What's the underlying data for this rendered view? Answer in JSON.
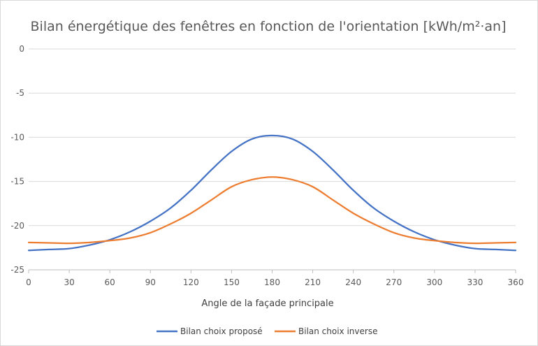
{
  "chart_data": {
    "type": "line",
    "title": "Bilan énergétique des fenêtres en fonction de l'orientation [kWh/m²·an]",
    "xlabel": "Angle de la façade principale",
    "ylabel": "",
    "xlim": [
      0,
      360
    ],
    "ylim": [
      -25,
      0
    ],
    "x_ticks": [
      0,
      30,
      60,
      90,
      120,
      150,
      180,
      210,
      240,
      270,
      300,
      330,
      360
    ],
    "y_ticks": [
      0,
      -5,
      -10,
      -15,
      -20,
      -25
    ],
    "grid": "horizontal",
    "legend_position": "bottom",
    "x": [
      0,
      15,
      30,
      45,
      60,
      75,
      90,
      105,
      120,
      135,
      150,
      165,
      180,
      195,
      210,
      225,
      240,
      255,
      270,
      285,
      300,
      315,
      330,
      345,
      360
    ],
    "series": [
      {
        "name": "Bilan choix proposé",
        "color": "#4472c4",
        "values": [
          -22.8,
          -22.7,
          -22.6,
          -22.2,
          -21.6,
          -20.7,
          -19.5,
          -18.0,
          -16.0,
          -13.7,
          -11.6,
          -10.2,
          -9.8,
          -10.2,
          -11.6,
          -13.7,
          -16.0,
          -18.0,
          -19.5,
          -20.7,
          -21.6,
          -22.2,
          -22.6,
          -22.7,
          -22.8
        ]
      },
      {
        "name": "Bilan choix inverse",
        "color": "#ed7d31",
        "values": [
          -21.9,
          -21.95,
          -22.0,
          -21.9,
          -21.7,
          -21.4,
          -20.8,
          -19.8,
          -18.6,
          -17.1,
          -15.6,
          -14.8,
          -14.5,
          -14.8,
          -15.6,
          -17.1,
          -18.6,
          -19.8,
          -20.8,
          -21.4,
          -21.7,
          -21.9,
          -22.0,
          -21.95,
          -21.9
        ]
      }
    ]
  }
}
